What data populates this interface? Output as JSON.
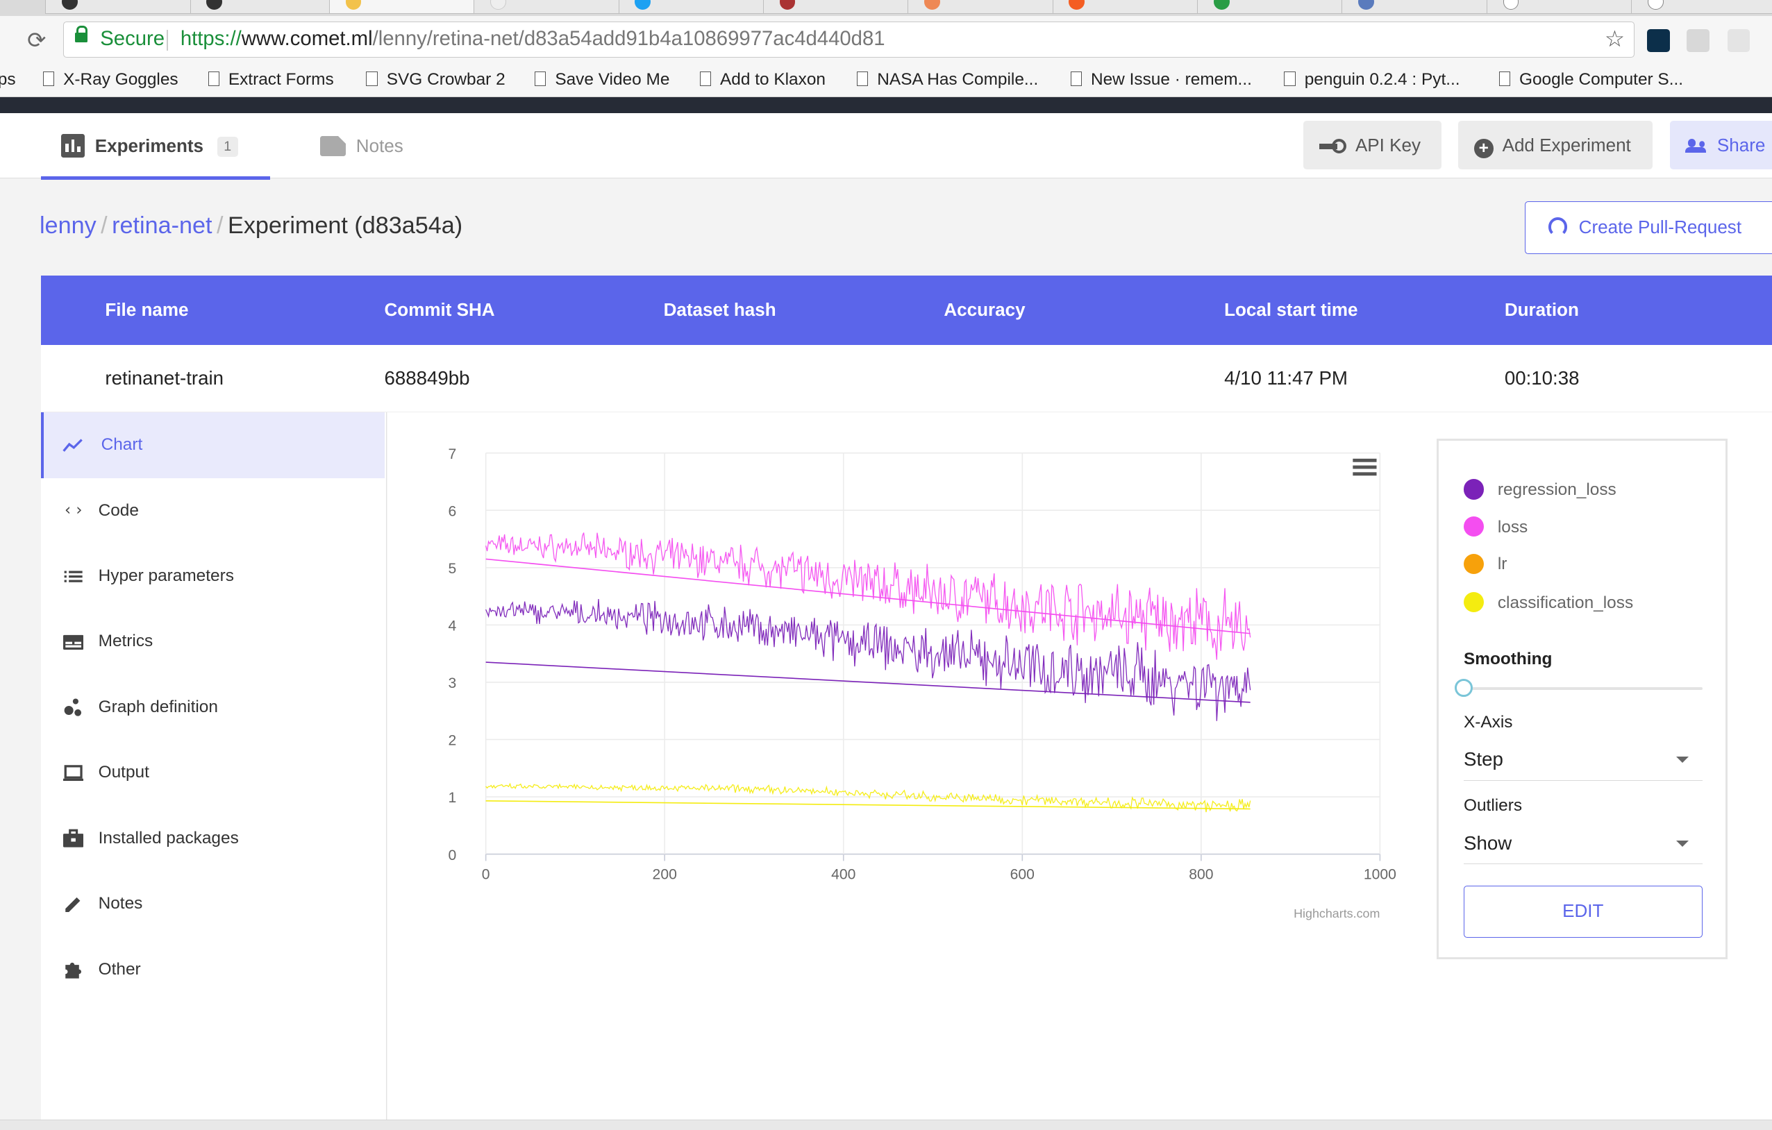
{
  "browser": {
    "secure_label": "Secure",
    "url_scheme": "https://",
    "url_host": "www.comet.ml",
    "url_path": "/lenny/retina-net/d83a54add91b4a10869977ac4d440d81",
    "bookmarks": [
      "ps",
      "X-Ray Goggles",
      "Extract Forms",
      "SVG Crowbar 2",
      "Save Video Me",
      "Add to Klaxon",
      "NASA Has Compile...",
      "New Issue · remem...",
      "penguin 0.2.4 : Pyt...",
      "Google Computer S..."
    ]
  },
  "header": {
    "tabs": [
      {
        "label": "Experiments",
        "count": "1"
      },
      {
        "label": "Notes"
      }
    ],
    "buttons": {
      "api_key": "API Key",
      "add_experiment": "Add Experiment",
      "share": "Share"
    }
  },
  "breadcrumb": {
    "user": "lenny",
    "project": "retina-net",
    "current": "Experiment (d83a54a)"
  },
  "pull_request_label": "Create Pull-Request",
  "table": {
    "headers": [
      "File name",
      "Commit SHA",
      "Dataset hash",
      "Accuracy",
      "Local start time",
      "Duration"
    ],
    "row": [
      "retinanet-train",
      "688849bb",
      "",
      "",
      "4/10 11:47 PM",
      "00:10:38"
    ]
  },
  "sidebar": {
    "items": [
      {
        "label": "Chart",
        "icon": "chart-line-icon"
      },
      {
        "label": "Code",
        "icon": "code-icon"
      },
      {
        "label": "Hyper parameters",
        "icon": "list-icon"
      },
      {
        "label": "Metrics",
        "icon": "metrics-icon"
      },
      {
        "label": "Graph definition",
        "icon": "graph-icon"
      },
      {
        "label": "Output",
        "icon": "laptop-icon"
      },
      {
        "label": "Installed packages",
        "icon": "briefcase-icon"
      },
      {
        "label": "Notes",
        "icon": "pencil-icon"
      },
      {
        "label": "Other",
        "icon": "puzzle-icon"
      }
    ]
  },
  "legend": {
    "items": [
      {
        "label": "regression_loss",
        "color": "#7b22b8"
      },
      {
        "label": "loss",
        "color": "#f44ef0"
      },
      {
        "label": "lr",
        "color": "#f7a10b"
      },
      {
        "label": "classification_loss",
        "color": "#f4ec10"
      }
    ],
    "smoothing_label": "Smoothing",
    "smoothing_value": 0,
    "xaxis_label": "X-Axis",
    "xaxis_value": "Step",
    "outliers_label": "Outliers",
    "outliers_value": "Show",
    "edit_label": "EDIT"
  },
  "chart_data": {
    "type": "line",
    "credit": "Highcharts.com",
    "xlim": [
      0,
      1000
    ],
    "ylim": [
      0,
      7
    ],
    "x_ticks": [
      "0",
      "200",
      "400",
      "600",
      "800",
      "1000"
    ],
    "y_ticks": [
      "0",
      "1",
      "2",
      "3",
      "4",
      "5",
      "6",
      "7"
    ],
    "grid": true,
    "series": [
      {
        "name": "loss",
        "color": "#f44ef0",
        "x": [
          0,
          100,
          200,
          300,
          400,
          500,
          600,
          700,
          800,
          855
        ],
        "y": [
          5.4,
          5.35,
          5.2,
          5.05,
          4.8,
          4.55,
          4.35,
          4.2,
          4.0,
          3.9
        ]
      },
      {
        "name": "regression_loss",
        "color": "#7b22b8",
        "x": [
          0,
          100,
          200,
          300,
          400,
          500,
          600,
          700,
          800,
          855
        ],
        "y": [
          4.25,
          4.2,
          4.1,
          3.95,
          3.7,
          3.5,
          3.3,
          3.15,
          3.0,
          2.95
        ]
      },
      {
        "name": "lr",
        "color": "#f7a10b",
        "x": [],
        "y": []
      },
      {
        "name": "classification_loss",
        "color": "#f4ec10",
        "x": [
          0,
          100,
          200,
          300,
          400,
          500,
          600,
          700,
          800,
          855
        ],
        "y": [
          1.18,
          1.17,
          1.16,
          1.14,
          1.08,
          1.0,
          0.95,
          0.9,
          0.85,
          0.84
        ]
      }
    ]
  }
}
